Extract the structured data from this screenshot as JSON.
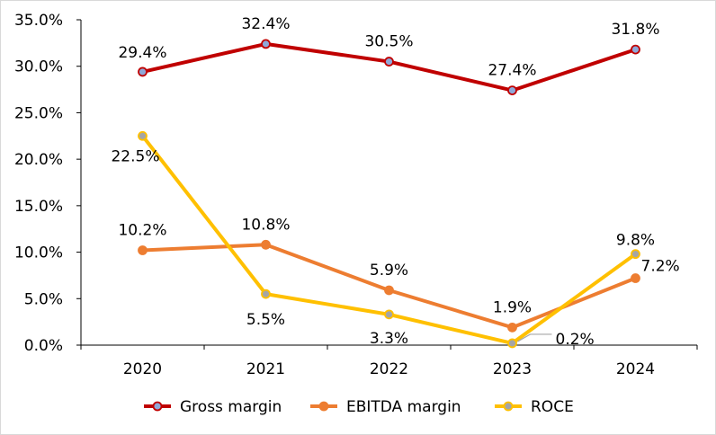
{
  "chart_data": {
    "type": "line",
    "categories": [
      "2020",
      "2021",
      "2022",
      "2023",
      "2024"
    ],
    "ylim": [
      0,
      35
    ],
    "y_ticks": [
      "0.0%",
      "5.0%",
      "10.0%",
      "15.0%",
      "20.0%",
      "25.0%",
      "30.0%",
      "35.0%"
    ],
    "grid": false,
    "legend_position": "bottom",
    "series": [
      {
        "name": "Gross margin",
        "color": "#c00000",
        "marker_color": "#8fa8d8",
        "values": [
          29.4,
          32.4,
          30.5,
          27.4,
          31.8
        ],
        "labels": [
          "29.4%",
          "32.4%",
          "30.5%",
          "27.4%",
          "31.8%"
        ]
      },
      {
        "name": "EBITDA margin",
        "color": "#ed7d31",
        "marker_color": "#ed7d31",
        "values": [
          10.2,
          10.8,
          5.9,
          1.9,
          7.2
        ],
        "labels": [
          "10.2%",
          "10.8%",
          "5.9%",
          "1.9%",
          "7.2%"
        ]
      },
      {
        "name": "ROCE",
        "color": "#ffc000",
        "marker_color": "#a5a5a5",
        "values": [
          22.5,
          5.5,
          3.3,
          0.2,
          9.8
        ],
        "labels": [
          "22.5%",
          "5.5%",
          "3.3%",
          "0.2%",
          "9.8%"
        ]
      }
    ]
  }
}
